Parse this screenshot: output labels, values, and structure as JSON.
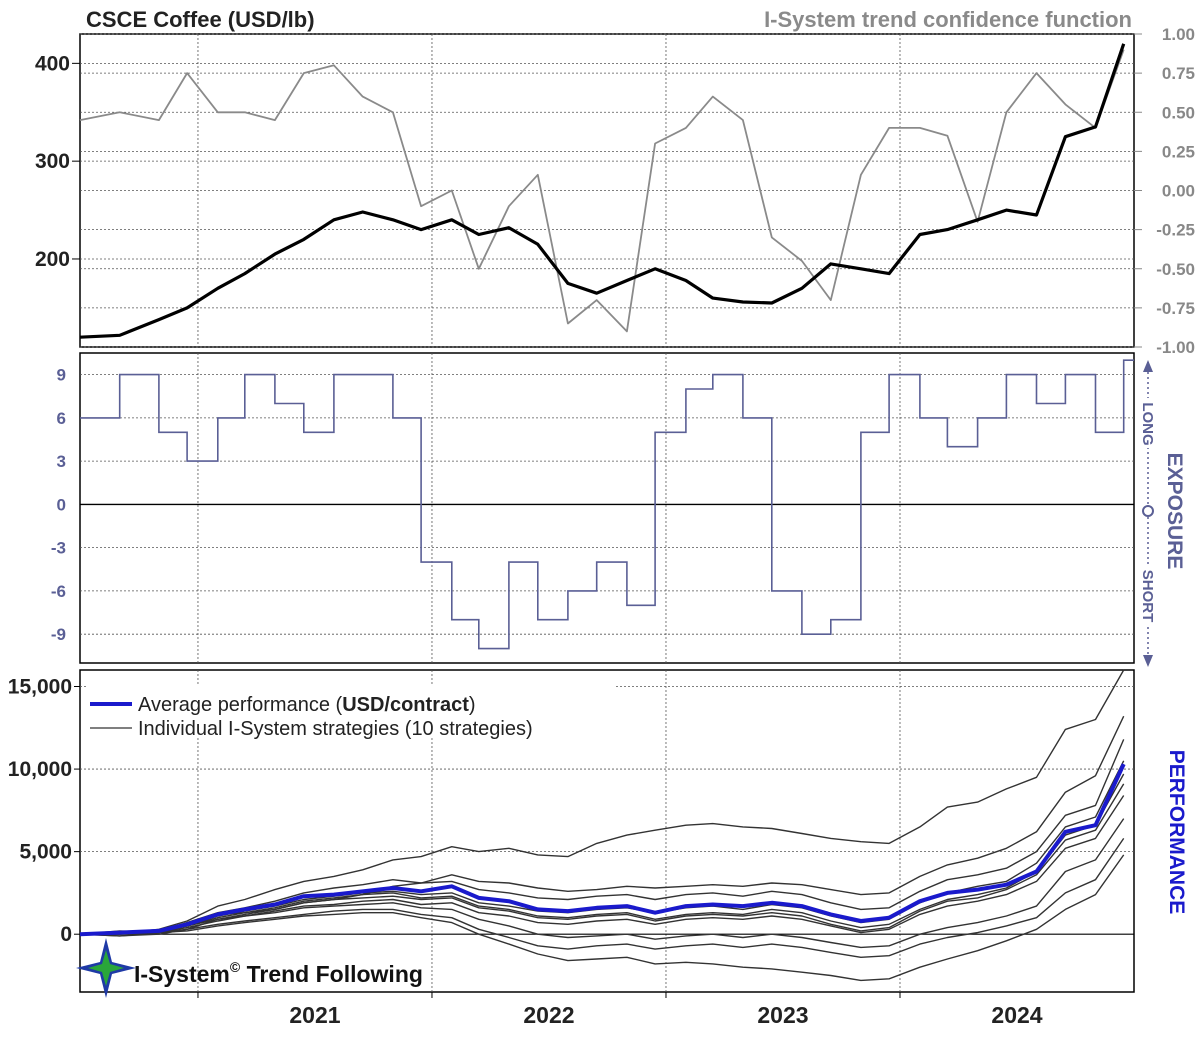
{
  "titles": {
    "left": "CSCE Coffee (USD/lb)",
    "right": "I-System trend confidence function"
  },
  "side_labels": {
    "long": "LONG",
    "exposure": "EXPOSURE",
    "short": "SHORT",
    "performance": "PERFORMANCE"
  },
  "legend": {
    "avg_prefix": "Average performance (",
    "avg_bold": "USD/contract",
    "avg_suffix": ")",
    "individual": "Individual I-System strategies (10 strategies)"
  },
  "branding": {
    "name": "I-System",
    "copyright": "©",
    "suffix": " Trend Following"
  },
  "colors": {
    "price": "#000000",
    "confidence": "#8a8a8a",
    "exposure": "#5a5f95",
    "average": "#1a1acc",
    "individual": "#333333",
    "right_axis": "#888888"
  },
  "chart_data": [
    {
      "type": "line",
      "panel": "price",
      "title": "CSCE Coffee (USD/lb)",
      "x_axis": {
        "type": "date",
        "range": [
          "2020-07-01",
          "2024-12-31"
        ],
        "tick_labels": [
          "2021",
          "2022",
          "2023",
          "2024"
        ]
      },
      "y_left": {
        "range": [
          110,
          430
        ],
        "ticks": [
          "200",
          "300",
          "400"
        ]
      },
      "y_right": {
        "label": "I-System trend confidence function",
        "range": [
          -1.0,
          1.0
        ],
        "ticks": [
          "-1.00",
          "-0.75",
          "-0.50",
          "-0.25",
          "0.00",
          "0.25",
          "0.50",
          "0.75",
          "1.00"
        ]
      },
      "grid": true,
      "series": [
        {
          "name": "CSCE Coffee (USD/lb)",
          "axis": "left",
          "x": [
            "2020-07-01",
            "2020-09-01",
            "2020-11-01",
            "2020-12-15",
            "2021-02-01",
            "2021-03-15",
            "2021-05-01",
            "2021-06-15",
            "2021-08-01",
            "2021-09-15",
            "2021-11-01",
            "2021-12-15",
            "2022-02-01",
            "2022-03-15",
            "2022-05-01",
            "2022-06-15",
            "2022-08-01",
            "2022-09-15",
            "2022-11-01",
            "2022-12-15",
            "2023-02-01",
            "2023-03-15",
            "2023-05-01",
            "2023-06-15",
            "2023-08-01",
            "2023-09-15",
            "2023-11-01",
            "2023-12-15",
            "2024-02-01",
            "2024-03-15",
            "2024-05-01",
            "2024-06-15",
            "2024-08-01",
            "2024-09-15",
            "2024-11-01",
            "2024-12-15"
          ],
          "y": [
            120,
            122,
            138,
            150,
            170,
            185,
            205,
            220,
            240,
            248,
            240,
            230,
            240,
            225,
            232,
            215,
            175,
            165,
            178,
            190,
            178,
            160,
            156,
            155,
            170,
            195,
            190,
            185,
            225,
            230,
            240,
            250,
            245,
            325,
            335,
            420
          ]
        },
        {
          "name": "I-System trend confidence function",
          "axis": "right",
          "x": [
            "2020-07-01",
            "2020-09-01",
            "2020-11-01",
            "2020-12-15",
            "2021-02-01",
            "2021-03-15",
            "2021-05-01",
            "2021-06-15",
            "2021-08-01",
            "2021-09-15",
            "2021-11-01",
            "2021-12-15",
            "2022-02-01",
            "2022-03-15",
            "2022-05-01",
            "2022-06-15",
            "2022-08-01",
            "2022-09-15",
            "2022-11-01",
            "2022-12-15",
            "2023-02-01",
            "2023-03-15",
            "2023-05-01",
            "2023-06-15",
            "2023-08-01",
            "2023-09-15",
            "2023-11-01",
            "2023-12-15",
            "2024-02-01",
            "2024-03-15",
            "2024-05-01",
            "2024-06-15",
            "2024-08-01",
            "2024-09-15",
            "2024-11-01",
            "2024-12-15"
          ],
          "y": [
            0.45,
            0.5,
            0.45,
            0.75,
            0.5,
            0.5,
            0.45,
            0.75,
            0.8,
            0.6,
            0.5,
            -0.1,
            0.0,
            -0.5,
            -0.1,
            0.1,
            -0.85,
            -0.7,
            -0.9,
            0.3,
            0.4,
            0.6,
            0.45,
            -0.3,
            -0.45,
            -0.7,
            0.1,
            0.4,
            0.4,
            0.35,
            -0.2,
            0.5,
            0.75,
            0.55,
            0.4,
            0.9
          ]
        }
      ]
    },
    {
      "type": "line",
      "panel": "exposure",
      "x_axis": {
        "type": "date",
        "range": [
          "2020-07-01",
          "2024-12-31"
        ]
      },
      "y": {
        "range": [
          -11,
          10.5
        ],
        "ticks": [
          "-9",
          "-6",
          "-3",
          "0",
          "3",
          "6",
          "9"
        ]
      },
      "grid": true,
      "series": [
        {
          "name": "EXPOSURE",
          "x": [
            "2020-07-01",
            "2020-09-01",
            "2020-11-01",
            "2020-12-15",
            "2021-02-01",
            "2021-03-15",
            "2021-05-01",
            "2021-06-15",
            "2021-08-01",
            "2021-09-15",
            "2021-11-01",
            "2021-12-15",
            "2022-02-01",
            "2022-03-15",
            "2022-05-01",
            "2022-06-15",
            "2022-08-01",
            "2022-09-15",
            "2022-11-01",
            "2022-12-15",
            "2023-02-01",
            "2023-03-15",
            "2023-05-01",
            "2023-06-15",
            "2023-08-01",
            "2023-09-15",
            "2023-11-01",
            "2023-12-15",
            "2024-02-01",
            "2024-03-15",
            "2024-05-01",
            "2024-06-15",
            "2024-08-01",
            "2024-09-15",
            "2024-11-01",
            "2024-12-15"
          ],
          "y": [
            6,
            9,
            5,
            3,
            6,
            9,
            7,
            5,
            9,
            9,
            6,
            -4,
            -8,
            -10,
            -4,
            -8,
            -6,
            -4,
            -7,
            5,
            8,
            9,
            6,
            -6,
            -9,
            -8,
            5,
            9,
            6,
            4,
            6,
            9,
            7,
            9,
            5,
            10
          ]
        }
      ]
    },
    {
      "type": "line",
      "panel": "performance",
      "x_axis": {
        "type": "date",
        "range": [
          "2020-07-01",
          "2024-12-31"
        ],
        "tick_labels": [
          "2021",
          "2022",
          "2023",
          "2024"
        ]
      },
      "y": {
        "range": [
          -3500,
          16000
        ],
        "ticks": [
          "0",
          "5,000",
          "10,000",
          "15,000"
        ]
      },
      "grid": true,
      "legend": "top-left",
      "series": [
        {
          "name": "Average performance (USD/contract)",
          "x": [
            "2020-07-01",
            "2020-09-01",
            "2020-11-01",
            "2020-12-15",
            "2021-02-01",
            "2021-03-15",
            "2021-05-01",
            "2021-06-15",
            "2021-08-01",
            "2021-09-15",
            "2021-11-01",
            "2021-12-15",
            "2022-02-01",
            "2022-03-15",
            "2022-05-01",
            "2022-06-15",
            "2022-08-01",
            "2022-09-15",
            "2022-11-01",
            "2022-12-15",
            "2023-02-01",
            "2023-03-15",
            "2023-05-01",
            "2023-06-15",
            "2023-08-01",
            "2023-09-15",
            "2023-11-01",
            "2023-12-15",
            "2024-02-01",
            "2024-03-15",
            "2024-05-01",
            "2024-06-15",
            "2024-08-01",
            "2024-09-15",
            "2024-11-01",
            "2024-12-15"
          ],
          "y": [
            0,
            100,
            200,
            600,
            1200,
            1500,
            1800,
            2300,
            2400,
            2600,
            2800,
            2600,
            2900,
            2200,
            2000,
            1500,
            1400,
            1600,
            1700,
            1300,
            1700,
            1800,
            1700,
            1900,
            1700,
            1200,
            800,
            1000,
            2000,
            2500,
            2700,
            3000,
            3800,
            6200,
            6600,
            10300
          ]
        },
        {
          "name": "Individual I-System strategies (10 strategies)",
          "legend_shown": true,
          "strategies": [
            [
              0,
              50,
              300,
              800,
              1700,
              2100,
              2700,
              3200,
              3500,
              3900,
              4500,
              4700,
              5300,
              5000,
              5200,
              4800,
              4700,
              5500,
              6000,
              6300,
              6600,
              6700,
              6500,
              6400,
              6100,
              5800,
              5600,
              5500,
              6500,
              7700,
              8000,
              8800,
              9500,
              12400,
              13000,
              16000
            ],
            [
              0,
              200,
              100,
              300,
              900,
              1200,
              1500,
              1900,
              2100,
              2400,
              2900,
              3100,
              3600,
              3200,
              3100,
              2800,
              2600,
              2700,
              2900,
              2800,
              2900,
              3000,
              2900,
              3100,
              3000,
              2700,
              2400,
              2500,
              3500,
              4200,
              4600,
              5200,
              6200,
              8600,
              9600,
              13200
            ],
            [
              0,
              150,
              200,
              700,
              1300,
              1600,
              2000,
              2500,
              2800,
              3000,
              3300,
              3100,
              3200,
              2700,
              2500,
              2200,
              2100,
              2300,
              2400,
              2100,
              2400,
              2500,
              2300,
              2600,
              2400,
              1900,
              1500,
              1600,
              2600,
              3300,
              3600,
              4000,
              5000,
              7200,
              7800,
              11800
            ],
            [
              0,
              100,
              250,
              500,
              1100,
              1400,
              1700,
              2100,
              2300,
              2500,
              2600,
              2400,
              2500,
              1900,
              1700,
              1400,
              1300,
              1500,
              1600,
              1300,
              1600,
              1700,
              1500,
              1800,
              1600,
              1100,
              700,
              900,
              1900,
              2500,
              2900,
              3200,
              4300,
              6500,
              7100,
              10500
            ],
            [
              0,
              0,
              200,
              600,
              1200,
              1300,
              1600,
              2000,
              2200,
              2400,
              2500,
              2200,
              2300,
              1700,
              1500,
              1100,
              1000,
              1200,
              1300,
              900,
              1200,
              1300,
              1200,
              1500,
              1300,
              800,
              400,
              600,
              1500,
              2100,
              2400,
              2800,
              3800,
              6000,
              6600,
              9700
            ],
            [
              0,
              100,
              100,
              500,
              1000,
              1300,
              1500,
              1900,
              2100,
              2200,
              2300,
              2100,
              2200,
              1600,
              1400,
              1000,
              900,
              1100,
              1200,
              800,
              1100,
              1200,
              1100,
              1300,
              1100,
              600,
              200,
              400,
              1400,
              2000,
              2200,
              2700,
              3600,
              5700,
              6300,
              9100
            ],
            [
              0,
              -100,
              100,
              400,
              800,
              1100,
              1400,
              1700,
              1800,
              2000,
              2100,
              1800,
              1900,
              1300,
              1100,
              700,
              600,
              800,
              900,
              600,
              900,
              1000,
              900,
              1100,
              900,
              500,
              100,
              300,
              1200,
              1700,
              2000,
              2400,
              3200,
              5200,
              5800,
              8400
            ],
            [
              0,
              100,
              200,
              500,
              900,
              1100,
              1300,
              1600,
              1700,
              1800,
              1900,
              1600,
              1500,
              900,
              500,
              0,
              -200,
              -100,
              0,
              -300,
              -100,
              0,
              -200,
              0,
              -200,
              -500,
              -800,
              -700,
              0,
              400,
              700,
              1100,
              1700,
              3800,
              4500,
              7000
            ],
            [
              0,
              -100,
              0,
              300,
              600,
              800,
              1000,
              1200,
              1400,
              1500,
              1500,
              1200,
              1000,
              300,
              -200,
              -700,
              -900,
              -700,
              -600,
              -900,
              -700,
              -600,
              -800,
              -600,
              -800,
              -1100,
              -1400,
              -1300,
              -600,
              -200,
              100,
              500,
              1000,
              2500,
              3300,
              5800
            ],
            [
              0,
              0,
              100,
              200,
              500,
              700,
              900,
              1100,
              1200,
              1300,
              1300,
              1000,
              700,
              0,
              -600,
              -1200,
              -1600,
              -1500,
              -1400,
              -1800,
              -1700,
              -1800,
              -2000,
              -2100,
              -2300,
              -2500,
              -2800,
              -2700,
              -2000,
              -1500,
              -1000,
              -400,
              300,
              1500,
              2400,
              4800
            ]
          ]
        }
      ]
    }
  ]
}
